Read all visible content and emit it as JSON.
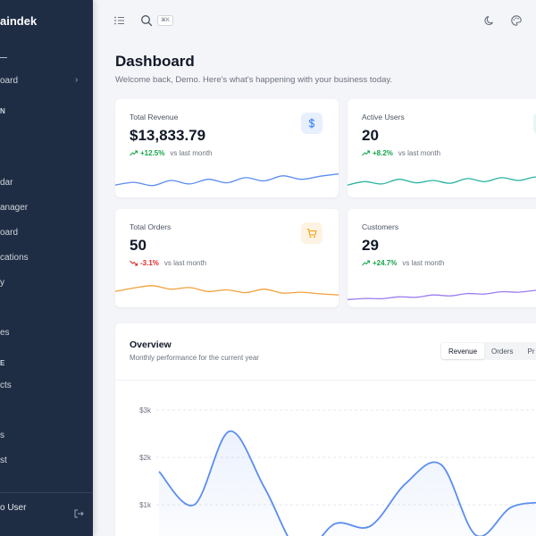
{
  "sidebar": {
    "brand": "aindek",
    "sections": [
      {
        "label": "N"
      },
      {
        "label": "E"
      }
    ],
    "items": [
      {
        "label": "oard",
        "name": "sidebar-item-dashboard"
      },
      {
        "label": "dar",
        "name": "sidebar-item-calendar"
      },
      {
        "label": "anager",
        "name": "sidebar-item-manager"
      },
      {
        "label": "oard",
        "name": "sidebar-item-board"
      },
      {
        "label": "cations",
        "name": "sidebar-item-notifications"
      },
      {
        "label": "y",
        "name": "sidebar-item-y"
      },
      {
        "label": "es",
        "name": "sidebar-item-es"
      },
      {
        "label": "cts",
        "name": "sidebar-item-products"
      },
      {
        "label": "s",
        "name": "sidebar-item-s"
      },
      {
        "label": "st",
        "name": "sidebar-item-list"
      }
    ],
    "user_label": "o User"
  },
  "topbar": {
    "search_shortcut": "⌘K"
  },
  "header": {
    "title": "Dashboard",
    "subtitle": "Welcome back, Demo. Here's what's happening with your business today."
  },
  "cards": [
    {
      "label": "Total Revenue",
      "value": "$13,833.79",
      "trend": "+12.5%",
      "direction": "up",
      "vs": "vs last month",
      "icon": "dollar-icon",
      "badge_bg": "#e8effd",
      "badge_fg": "#3b82f6",
      "line_color": "#5b8def",
      "spark": [
        0.3,
        0.42,
        0.28,
        0.5,
        0.35,
        0.55,
        0.4,
        0.62,
        0.48,
        0.7,
        0.55,
        0.68,
        0.78
      ]
    },
    {
      "label": "Active Users",
      "value": "20",
      "trend": "+8.2%",
      "direction": "up",
      "vs": "vs last month",
      "icon": "users-icon",
      "badge_bg": "#e6f7f3",
      "badge_fg": "#14b8a6",
      "line_color": "#2bb3a3",
      "spark": [
        0.3,
        0.45,
        0.35,
        0.55,
        0.4,
        0.5,
        0.38,
        0.58,
        0.45,
        0.62,
        0.5,
        0.65,
        0.55
      ]
    },
    {
      "label": "Total Orders",
      "value": "50",
      "trend": "-3.1%",
      "direction": "down",
      "vs": "vs last month",
      "icon": "cart-icon",
      "badge_bg": "#fef3e2",
      "badge_fg": "#f59e0b",
      "line_color": "#f0a23a",
      "spark": [
        0.45,
        0.6,
        0.7,
        0.55,
        0.62,
        0.45,
        0.52,
        0.4,
        0.55,
        0.38,
        0.42,
        0.35,
        0.3
      ]
    },
    {
      "label": "Customers",
      "value": "29",
      "trend": "+24.7%",
      "direction": "up",
      "vs": "vs last month",
      "icon": "customers-icon",
      "badge_bg": "#f1eafd",
      "badge_fg": "#8b5cf6",
      "line_color": "#9b7cf0",
      "spark": [
        0.1,
        0.15,
        0.14,
        0.22,
        0.2,
        0.3,
        0.26,
        0.36,
        0.34,
        0.44,
        0.42,
        0.5,
        0.55
      ]
    }
  ],
  "overview": {
    "title": "Overview",
    "subtitle": "Monthly performance for the current year",
    "tabs": [
      {
        "label": "Revenue",
        "active": true
      },
      {
        "label": "Orders",
        "active": false
      },
      {
        "label": "Pr",
        "active": false
      }
    ]
  },
  "chart_data": {
    "type": "area",
    "y_tick_labels": [
      "$3k",
      "$2k",
      "$1k"
    ],
    "y_ticks": [
      3000,
      2000,
      1000
    ],
    "ylim": [
      0,
      3500
    ],
    "line_color": "#5b8def",
    "points": [
      {
        "x": 0,
        "y": 1700
      },
      {
        "x": 1,
        "y": 1000
      },
      {
        "x": 2,
        "y": 2550
      },
      {
        "x": 3,
        "y": 1350
      },
      {
        "x": 4,
        "y": 0
      },
      {
        "x": 5,
        "y": 600
      },
      {
        "x": 6,
        "y": 550
      },
      {
        "x": 7,
        "y": 1450
      },
      {
        "x": 8,
        "y": 1850
      },
      {
        "x": 9,
        "y": 350
      },
      {
        "x": 10,
        "y": 950
      },
      {
        "x": 11,
        "y": 1050
      }
    ]
  }
}
